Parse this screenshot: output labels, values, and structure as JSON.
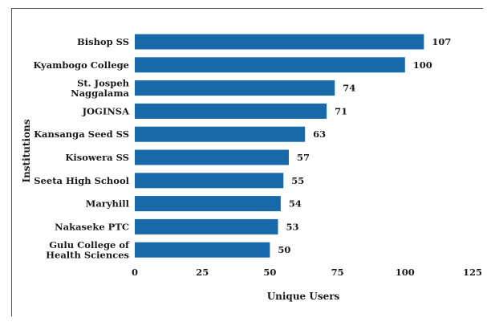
{
  "chart_data": {
    "type": "bar",
    "orientation": "horizontal",
    "categories": [
      [
        "Bishop SS"
      ],
      [
        "Kyambogo College"
      ],
      [
        "St. Jospeh",
        "Naggalama"
      ],
      [
        "JOGINSA"
      ],
      [
        "Kansanga Seed SS"
      ],
      [
        "Kisowera SS"
      ],
      [
        "Seeta High School"
      ],
      [
        "Maryhill"
      ],
      [
        "Nakaseke PTC"
      ],
      [
        "Gulu College of",
        "Health Sciences"
      ]
    ],
    "values": [
      107,
      100,
      74,
      71,
      63,
      57,
      55,
      54,
      53,
      50
    ],
    "xlabel": "Unique Users",
    "ylabel": "Institutions",
    "xlim": [
      0,
      125
    ],
    "xticks": [
      0,
      25,
      50,
      75,
      100,
      125
    ],
    "grid": false,
    "bar_color": "#1769aa"
  }
}
